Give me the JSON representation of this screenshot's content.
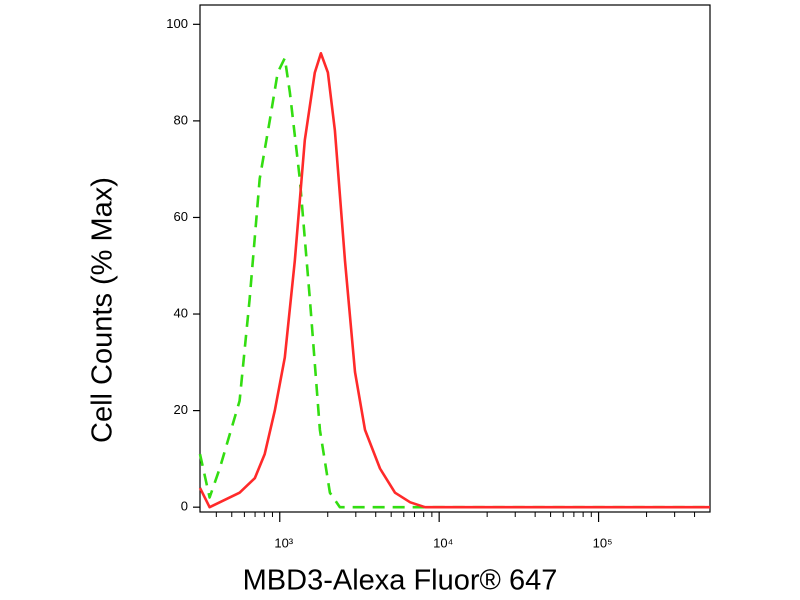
{
  "chart_data": {
    "type": "line",
    "xlabel": "MBD3-Alexa Fluor® 647",
    "ylabel": "Cell Counts (% Max)",
    "xscale": "log",
    "xlim": [
      316,
      500000
    ],
    "ylim": [
      -1,
      104
    ],
    "xticks": [
      {
        "value": 1000,
        "label": "10³"
      },
      {
        "value": 10000,
        "label": "10⁴"
      },
      {
        "value": 100000,
        "label": "10⁵"
      }
    ],
    "xminorticks": [
      400,
      500,
      600,
      700,
      800,
      900,
      2000,
      3000,
      4000,
      5000,
      6000,
      7000,
      8000,
      9000,
      20000,
      30000,
      40000,
      50000,
      60000,
      70000,
      80000,
      90000,
      200000,
      300000,
      400000
    ],
    "yticks": [
      0,
      20,
      40,
      60,
      80,
      100
    ],
    "series": [
      {
        "color": "#33dd11",
        "dash": true,
        "x": [
          316,
          363,
          420,
          560,
          647,
          748,
          865,
          971,
          1075,
          1156,
          1336,
          1545,
          1786,
          2062,
          2384,
          5690,
          500000
        ],
        "values": [
          11,
          2,
          8,
          22,
          43,
          68,
          80,
          90,
          93,
          86,
          68,
          43,
          16,
          3,
          0,
          0,
          0
        ]
      },
      {
        "color": "#ff2a2a",
        "dash": false,
        "x": [
          316,
          363,
          420,
          560,
          697,
          805,
          931,
          1075,
          1242,
          1436,
          1660,
          1811,
          2005,
          2219,
          2565,
          2965,
          3427,
          4256,
          5286,
          6577,
          8166,
          500000
        ],
        "values": [
          4,
          0,
          1,
          3,
          6,
          11,
          20,
          31,
          51,
          76,
          90,
          94,
          90,
          78,
          51,
          28,
          16,
          8,
          3,
          1,
          0,
          0
        ]
      }
    ]
  }
}
